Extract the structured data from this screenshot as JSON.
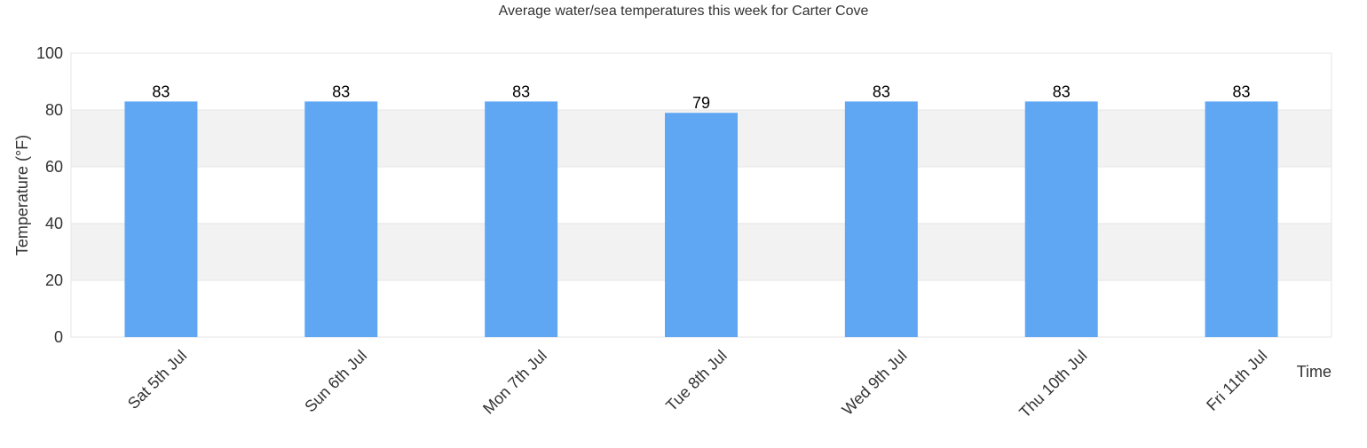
{
  "chart_data": {
    "type": "bar",
    "title": "Average water/sea temperatures this week for Carter Cove",
    "xlabel": "Time",
    "ylabel": "Temperature (°F)",
    "categories": [
      "Sat 5th Jul",
      "Sun 6th Jul",
      "Mon 7th Jul",
      "Tue 8th Jul",
      "Wed 9th Jul",
      "Thu 10th Jul",
      "Fri 11th Jul"
    ],
    "values": [
      83,
      83,
      83,
      79,
      83,
      83,
      83
    ],
    "data_labels": [
      "83",
      "83",
      "83",
      "79",
      "83",
      "83",
      "83"
    ],
    "ylim": [
      0,
      100
    ],
    "yticks": [
      0,
      20,
      40,
      60,
      80,
      100
    ],
    "ytick_labels": [
      "0",
      "20",
      "40",
      "60",
      "80",
      "100"
    ],
    "grid": true,
    "legend": false,
    "colors": {
      "bar": "#60a7f3",
      "band": "#f2f2f2",
      "grid": "#e6e6e6",
      "text": "#333333",
      "label": "#000000"
    }
  }
}
